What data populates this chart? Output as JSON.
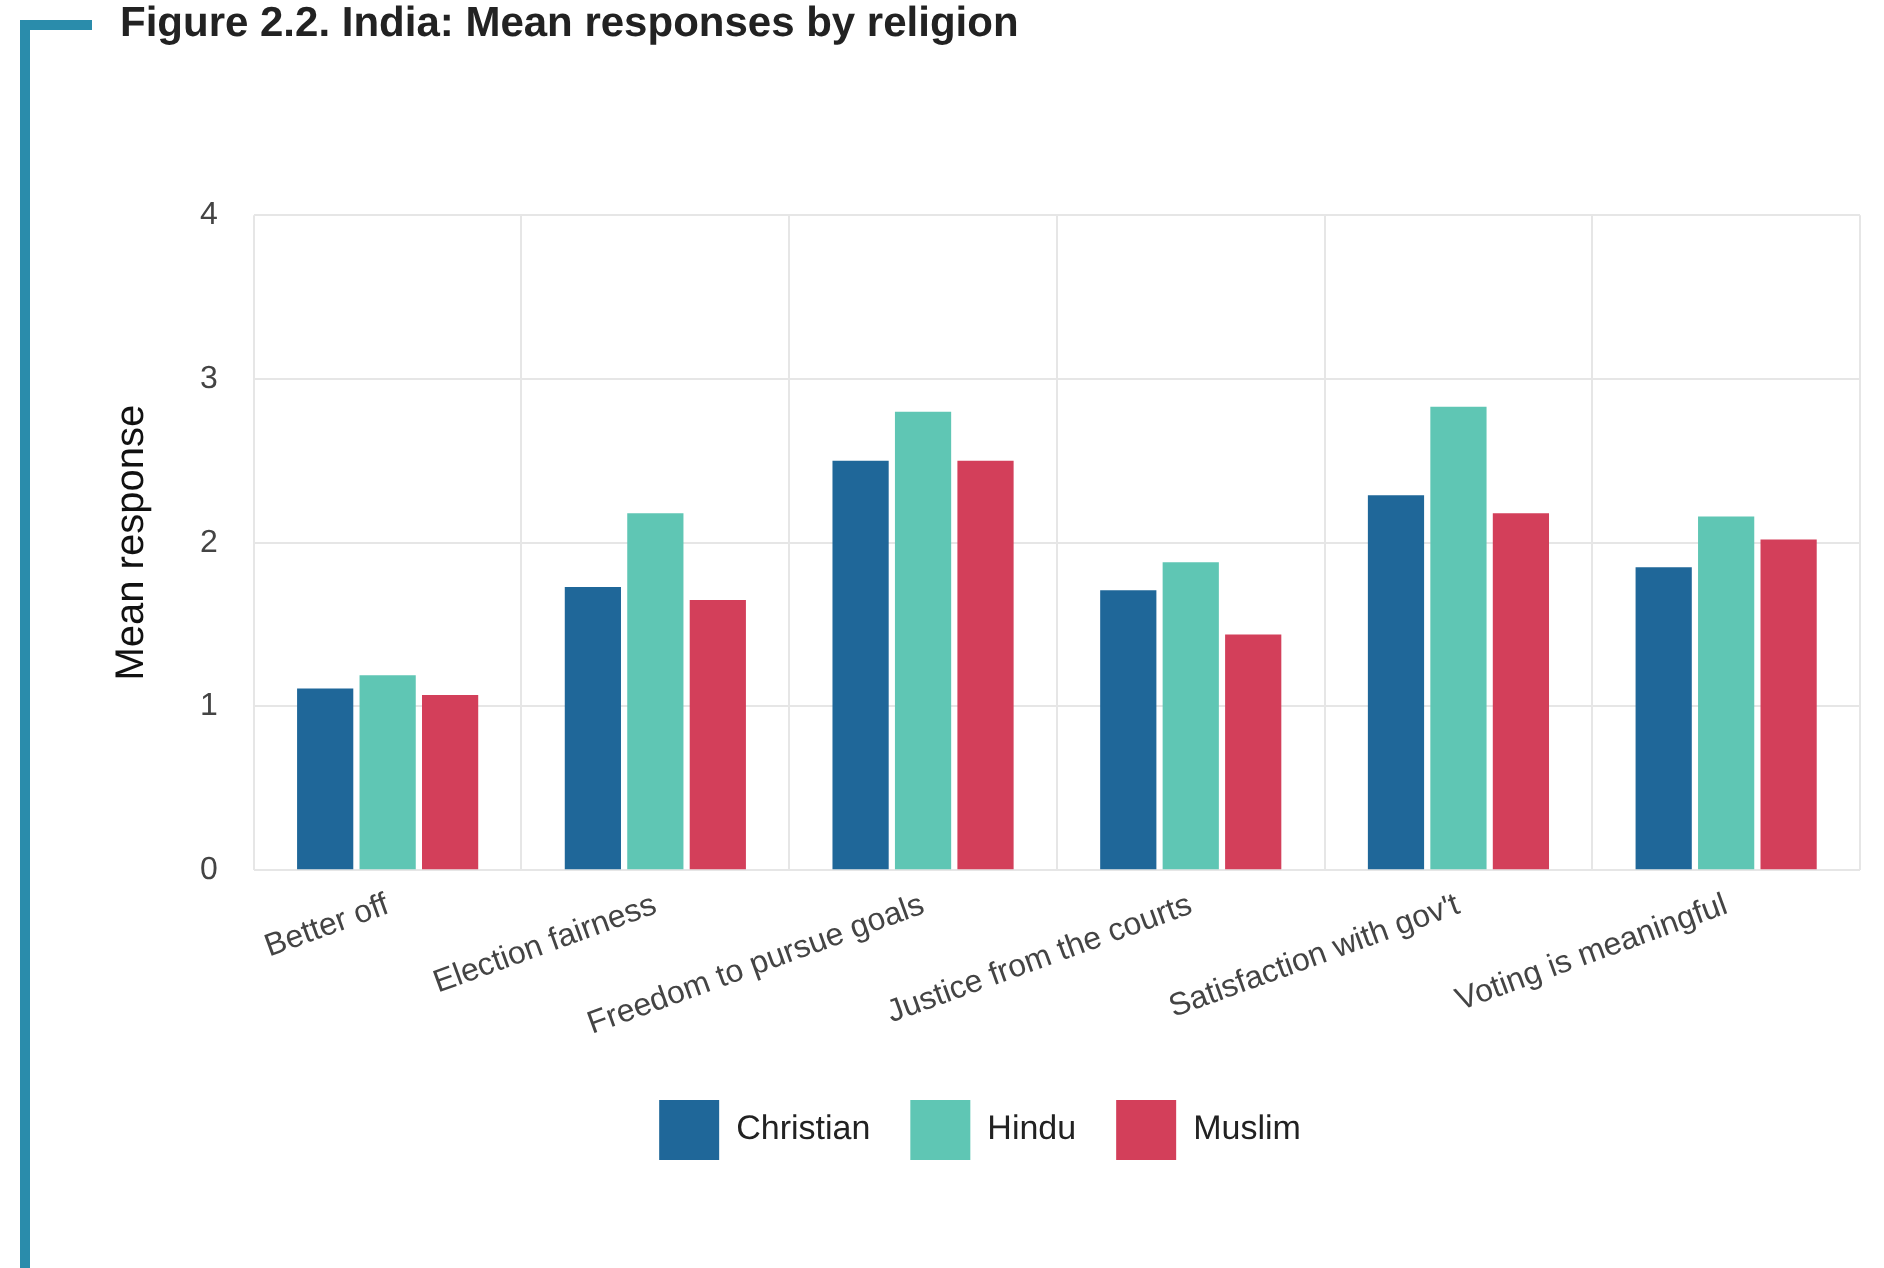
{
  "chart_data": {
    "type": "bar",
    "title": "Figure 2.2. India: Mean responses by religion",
    "ylabel": "Mean response",
    "categories": [
      "Better off",
      "Election fairness",
      "Freedom to pursue goals",
      "Justice from the courts",
      "Satisfaction with gov't",
      "Voting is meaningful"
    ],
    "series": [
      {
        "name": "Christian",
        "color": "#1f6799",
        "values": [
          1.11,
          1.73,
          2.5,
          1.71,
          2.29,
          1.85
        ]
      },
      {
        "name": "Hindu",
        "color": "#5fc6b4",
        "values": [
          1.19,
          2.18,
          2.8,
          1.88,
          2.83,
          2.16
        ]
      },
      {
        "name": "Muslim",
        "color": "#d33f5a",
        "values": [
          1.07,
          1.65,
          2.5,
          1.44,
          2.18,
          2.02
        ]
      }
    ],
    "ylim": [
      0,
      4
    ],
    "yticks": [
      0,
      1,
      2,
      3,
      4
    ],
    "grid": true,
    "legend": "bottom"
  }
}
